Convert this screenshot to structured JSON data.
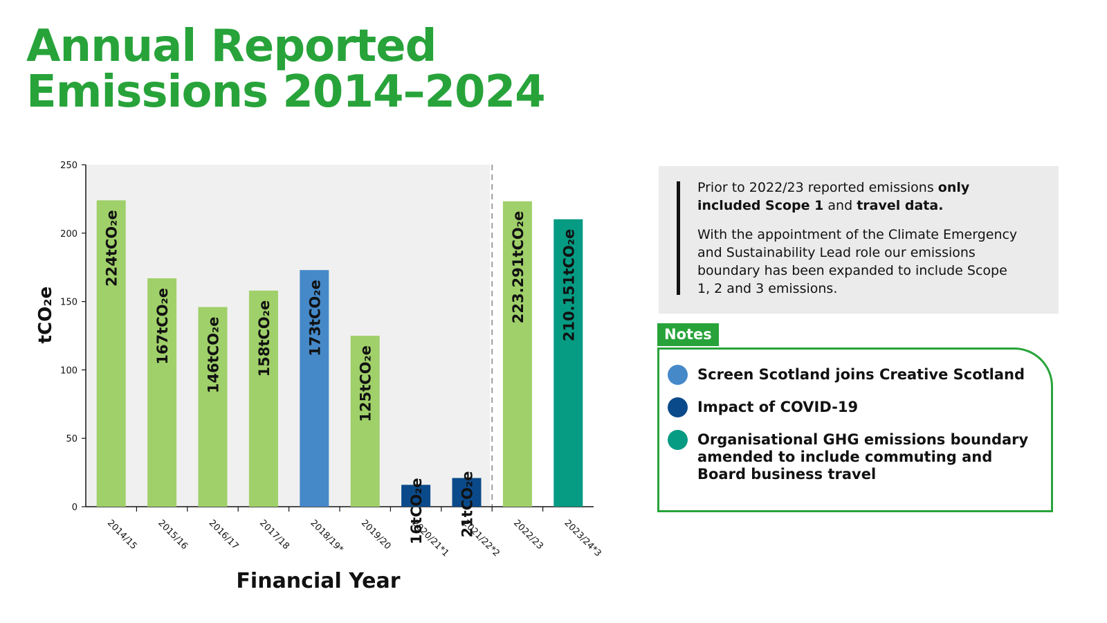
{
  "title": {
    "line1": "Annual Reported",
    "line2": "Emissions 2014–2024"
  },
  "intro": {
    "p1_a": "Prior to 2022/23 reported emissions ",
    "p1_b": "only included Scope 1",
    "p1_c": " and ",
    "p1_d": "travel data.",
    "p2": "With the appointment of the Climate Emergency and Sustainability Lead role our emissions boundary has been expanded to include Scope 1, 2 and 3 emissions."
  },
  "notes": {
    "tab_label": "Notes",
    "items": [
      {
        "text": "Screen Scotland joins Creative Scotland",
        "color": "#4589c9"
      },
      {
        "text": "Impact of COVID-19",
        "color": "#0b4a8a"
      },
      {
        "text": "Organisational GHG emissions boundary amended to include commuting and Board business travel",
        "color": "#069b83"
      }
    ]
  },
  "chart_data": {
    "type": "bar",
    "title": "Annual Reported Emissions 2014–2024",
    "xlabel": "Financial Year",
    "ylabel": "tCO₂e",
    "ylim": [
      0,
      250
    ],
    "yticks": [
      0,
      50,
      100,
      150,
      200,
      250
    ],
    "grid": false,
    "categories": [
      "2014/15",
      "2015/16",
      "2016/17",
      "2017/18",
      "2018/19*",
      "2019/20",
      "2020/21*1",
      "2021/22*2",
      "2022/23",
      "2023/24*3"
    ],
    "values": [
      224,
      167,
      146,
      158,
      173,
      125,
      16,
      21,
      223.291,
      210.151
    ],
    "labels": [
      "224tCO₂e",
      "167tCO₂e",
      "146tCO₂e",
      "158tCO₂e",
      "173tCO₂e",
      "125tCO₂e",
      "16tCO₂e",
      "21tCO₂e",
      "223.291tCO₂e",
      "210.151tCO₂e"
    ],
    "colors": [
      "#a0d06a",
      "#a0d06a",
      "#a0d06a",
      "#a0d06a",
      "#4589c9",
      "#a0d06a",
      "#0b4a8a",
      "#0b4a8a",
      "#a0d06a",
      "#069b83"
    ],
    "boundary_change_after": "2021/22*2"
  }
}
